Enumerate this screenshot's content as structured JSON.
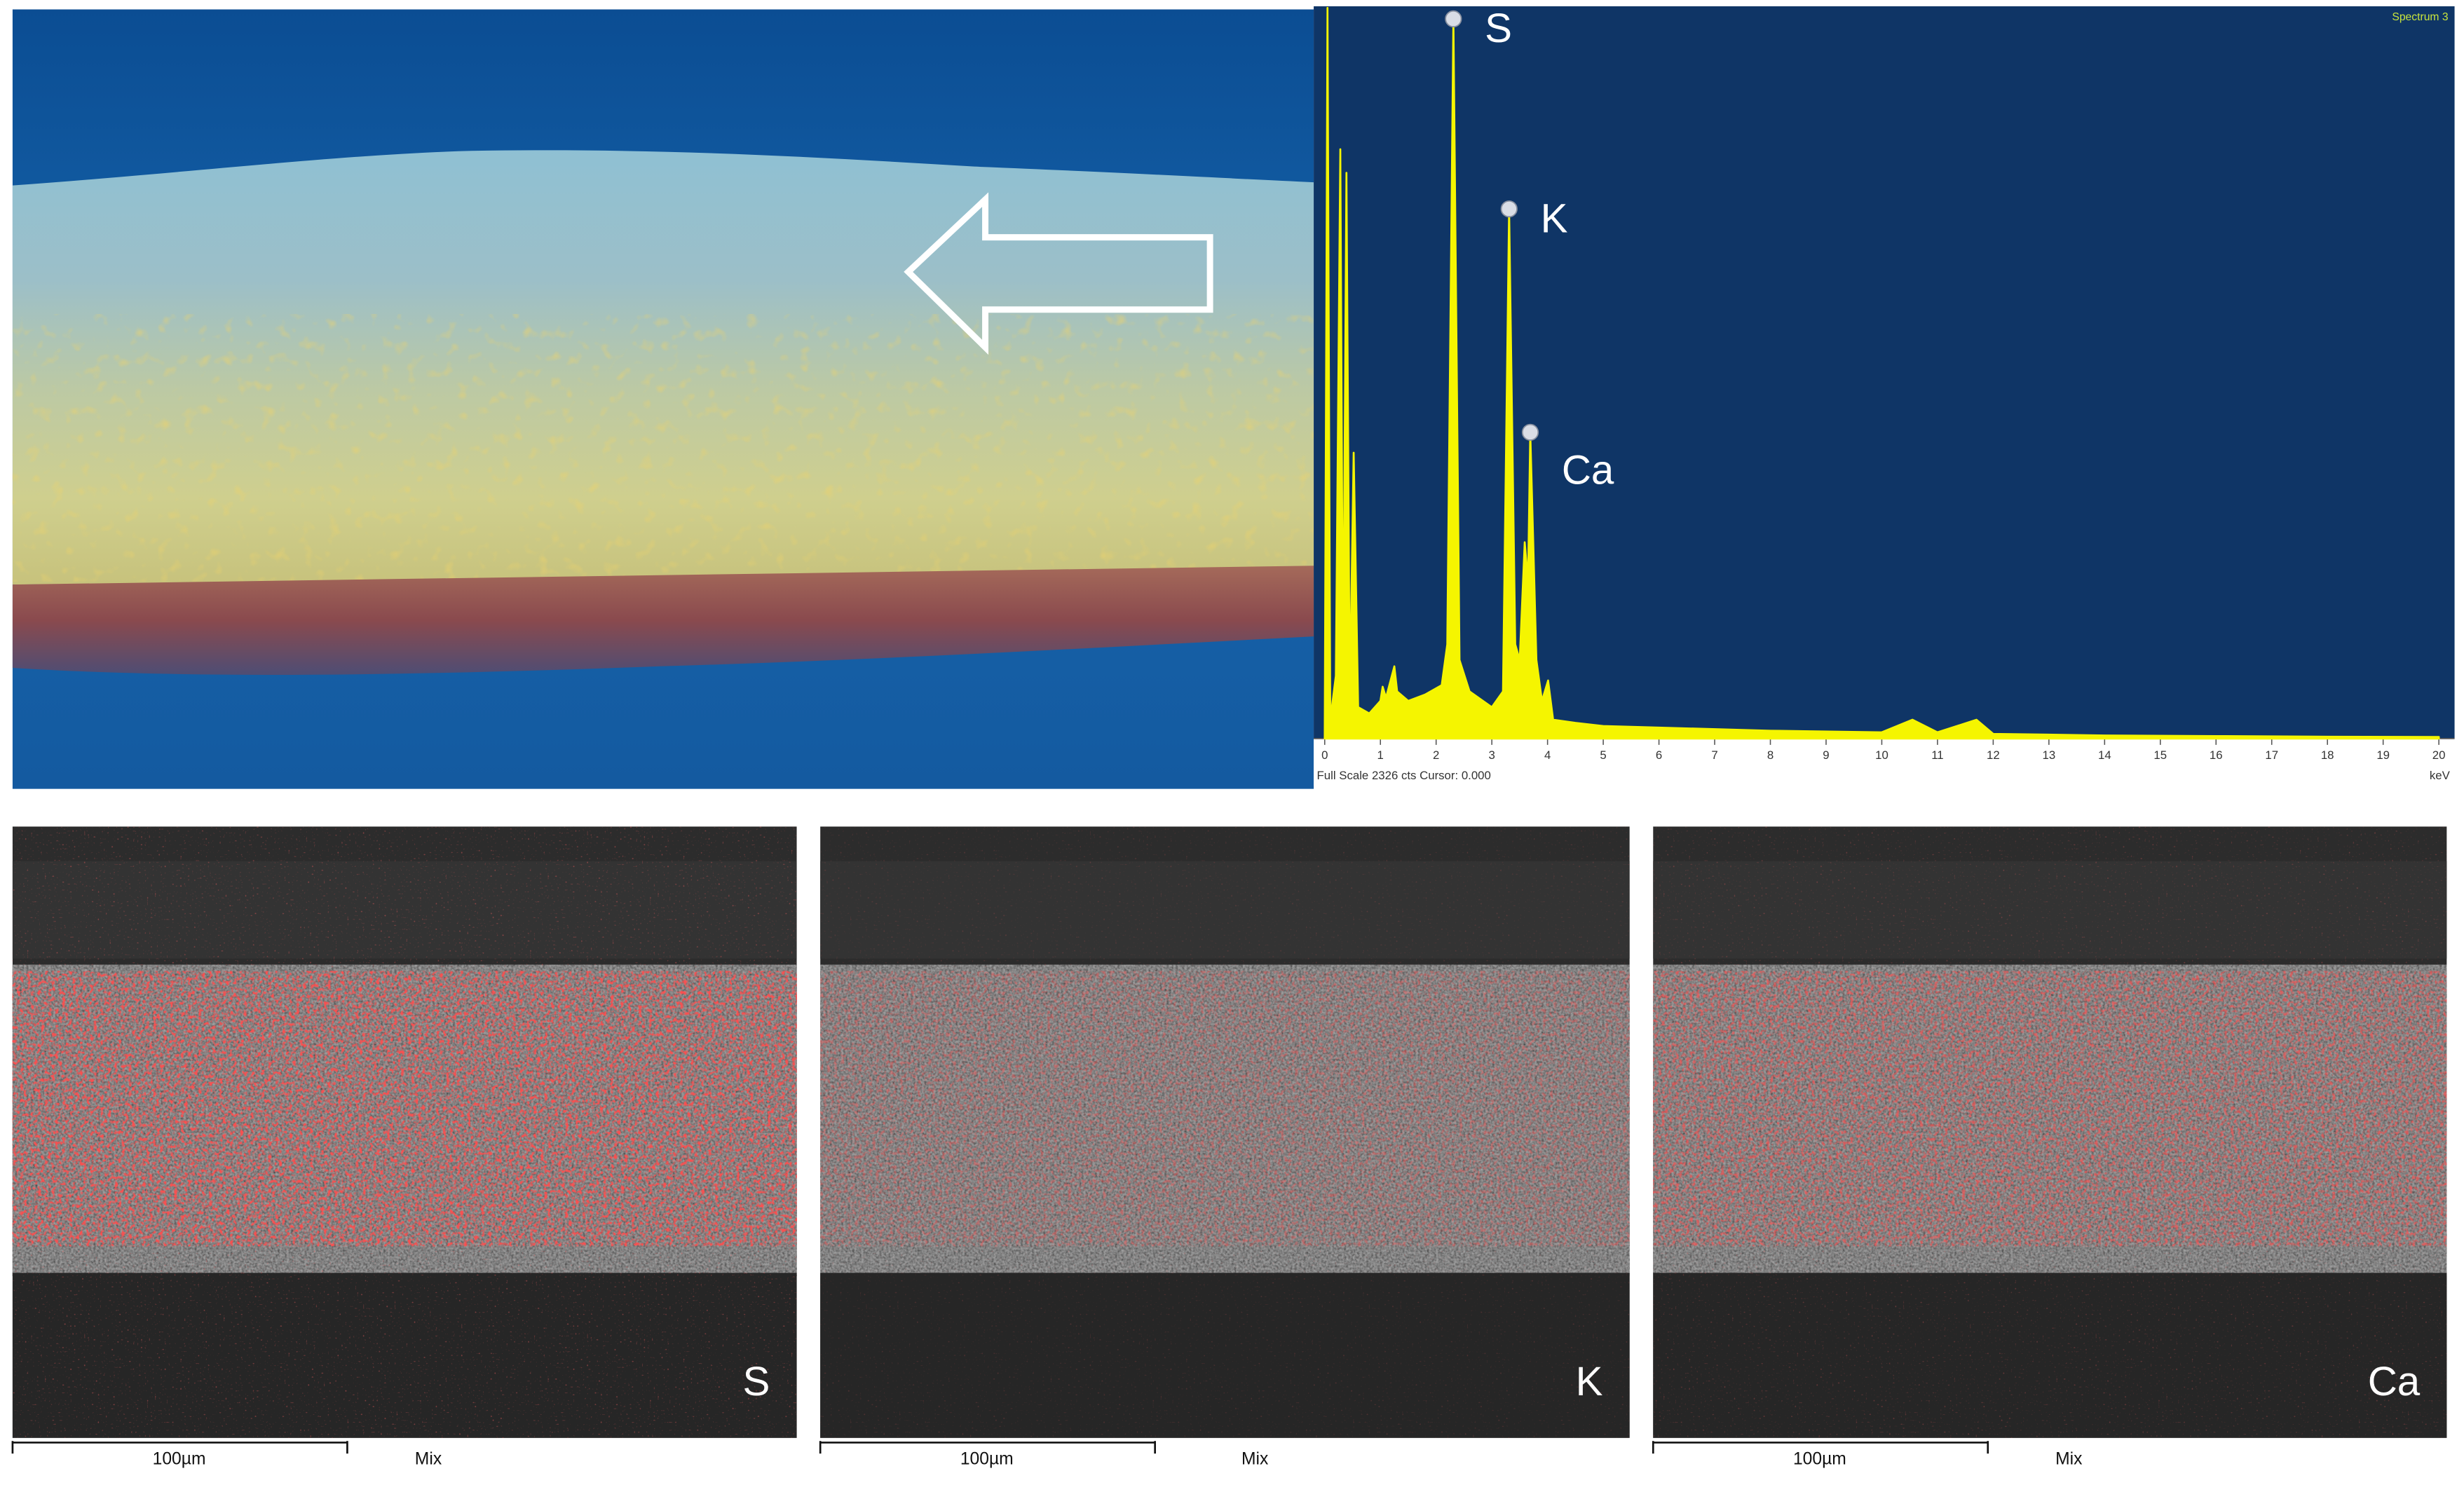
{
  "chart_data": {
    "type": "line",
    "title": "Spectrum 3",
    "x": [
      0,
      0.05,
      0.1,
      0.2,
      0.28,
      0.33,
      0.39,
      0.45,
      0.52,
      0.6,
      0.8,
      1.0,
      1.04,
      1.1,
      1.25,
      1.3,
      1.5,
      1.8,
      2.1,
      2.2,
      2.31,
      2.42,
      2.6,
      3.0,
      3.2,
      3.31,
      3.42,
      3.5,
      3.59,
      3.65,
      3.69,
      3.8,
      3.9,
      4.01,
      4.1,
      4.5,
      5,
      6,
      8,
      10,
      10.55,
      11,
      11.7,
      12,
      14,
      16,
      18,
      20
    ],
    "values": [
      0,
      2326,
      60,
      200,
      1876,
      150,
      1801,
      120,
      910,
      100,
      80,
      120,
      165,
      130,
      230,
      150,
      120,
      140,
      170,
      300,
      2291,
      250,
      150,
      100,
      150,
      1686,
      300,
      250,
      625,
      500,
      975,
      250,
      120,
      185,
      60,
      50,
      40,
      35,
      25,
      20,
      60,
      20,
      60,
      15,
      10,
      8,
      6,
      5
    ],
    "color": "#f5f500",
    "xlim": [
      0,
      20
    ],
    "ylim": [
      0,
      2326
    ],
    "xticks": [
      0,
      1,
      2,
      3,
      4,
      5,
      6,
      7,
      8,
      9,
      10,
      11,
      12,
      13,
      14,
      15,
      16,
      17,
      18,
      19,
      20
    ],
    "x_unit_label": "keV",
    "footer": "Full Scale 2326 cts Cursor: 0.000",
    "peak_labels": [
      {
        "text": "S",
        "x": 2.31
      },
      {
        "text": "K",
        "x": 3.31
      },
      {
        "text": "Ca",
        "x": 3.69
      }
    ]
  },
  "maps": [
    {
      "element": "S",
      "scale_bar": "100µm",
      "mode": "Mix"
    },
    {
      "element": "K",
      "scale_bar": "100µm",
      "mode": "Mix"
    },
    {
      "element": "Ca",
      "scale_bar": "100µm",
      "mode": "Mix"
    }
  ]
}
